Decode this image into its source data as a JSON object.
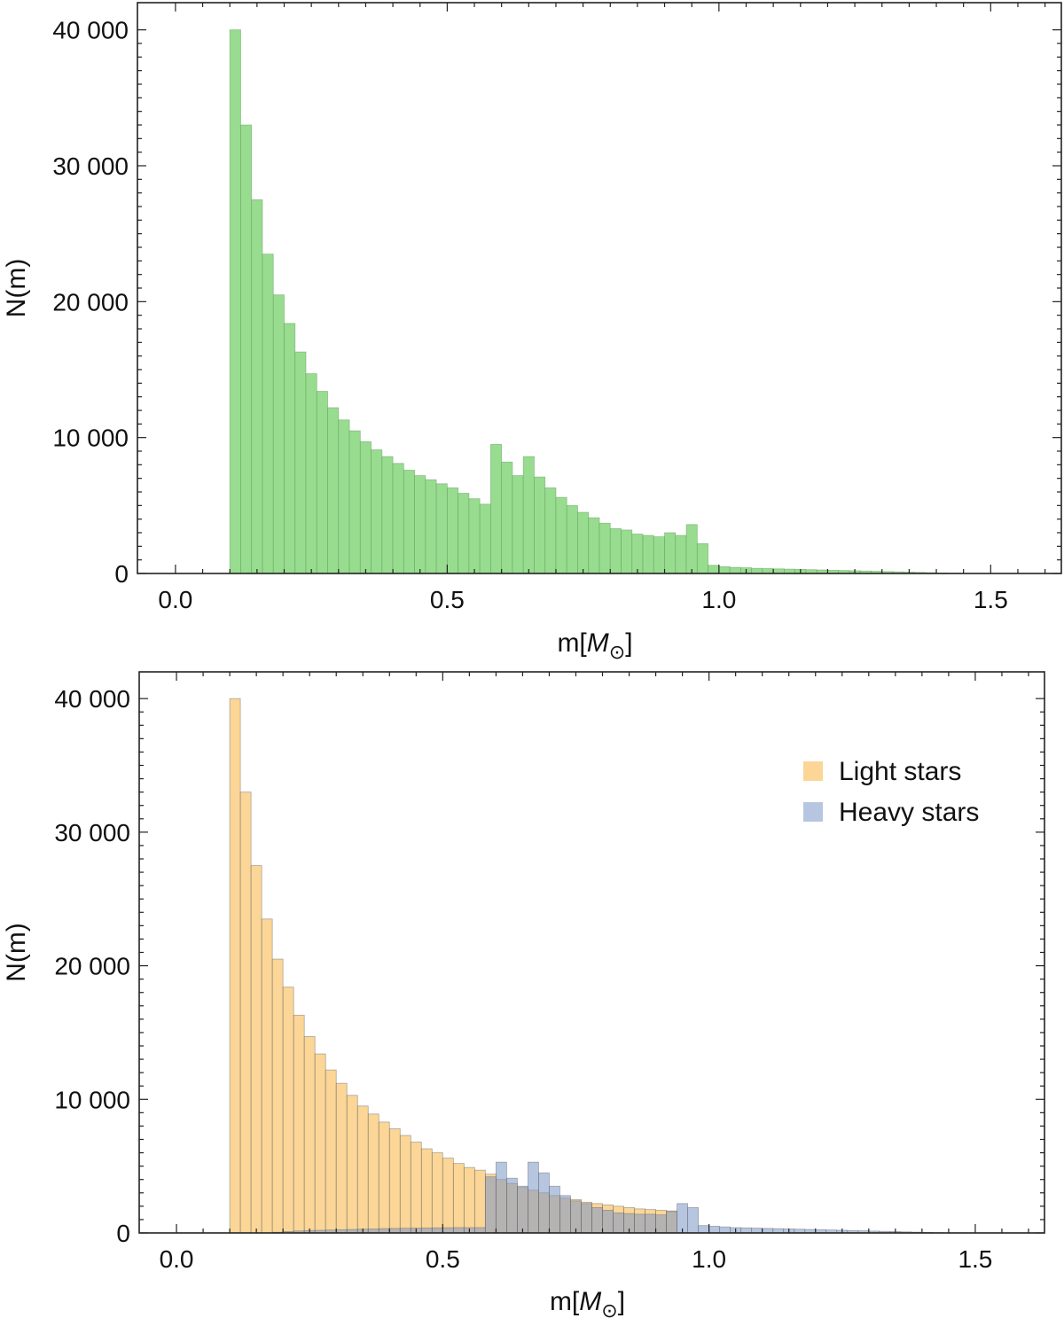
{
  "chart_data": [
    {
      "type": "bar",
      "xlabel": "m[M",
      "xlabel_subscript": "⊙",
      "xlabel_suffix": "]",
      "ylabel": "N(m)",
      "xlim": [
        -0.07,
        1.63
      ],
      "ylim": [
        0,
        42000
      ],
      "x_ticks": [
        0.0,
        0.5,
        1.0,
        1.5
      ],
      "x_tick_labels": [
        "0.0",
        "0.5",
        "1.0",
        "1.5"
      ],
      "y_ticks": [
        0,
        10000,
        20000,
        30000,
        40000
      ],
      "y_tick_labels": [
        "0",
        "10 000",
        "20 000",
        "30 000",
        "40 000"
      ],
      "bin_width": 0.02,
      "bin_start": 0.1,
      "colors": {
        "fill": "#98dc90",
        "stroke": "#5e9a58"
      },
      "series": [
        {
          "values": [
            40000,
            33000,
            27500,
            23500,
            20500,
            18400,
            16300,
            14700,
            13400,
            12200,
            11300,
            10500,
            9700,
            9100,
            8600,
            8100,
            7600,
            7200,
            6900,
            6600,
            6300,
            5900,
            5500,
            5100,
            9500,
            8200,
            7200,
            8600,
            7100,
            6300,
            5600,
            5000,
            4500,
            4100,
            3700,
            3300,
            3200,
            2900,
            2800,
            2700,
            3000,
            2800,
            3600,
            2200,
            600,
            500,
            450,
            420,
            380,
            360,
            340,
            320,
            300,
            280,
            260,
            240,
            220,
            200,
            180,
            160,
            140,
            120,
            100,
            80,
            60,
            40,
            20
          ]
        }
      ]
    },
    {
      "type": "bar",
      "xlabel": "m[M",
      "xlabel_subscript": "⊙",
      "xlabel_suffix": "]",
      "ylabel": "N(m)",
      "xlim": [
        -0.07,
        1.63
      ],
      "ylim": [
        0,
        42000
      ],
      "x_ticks": [
        0.0,
        0.5,
        1.0,
        1.5
      ],
      "x_tick_labels": [
        "0.0",
        "0.5",
        "1.0",
        "1.5"
      ],
      "y_ticks": [
        0,
        10000,
        20000,
        30000,
        40000
      ],
      "y_tick_labels": [
        "0",
        "10 000",
        "20 000",
        "30 000",
        "40 000"
      ],
      "bin_width": 0.02,
      "bin_start": 0.1,
      "legend_position": "top-right",
      "series": [
        {
          "name": "Light stars",
          "color": "#f9c060",
          "fill_opacity": 0.65,
          "values": [
            40000,
            33000,
            27500,
            23500,
            20500,
            18400,
            16300,
            14700,
            13400,
            12200,
            11200,
            10300,
            9500,
            8900,
            8300,
            7800,
            7300,
            6800,
            6300,
            6000,
            5600,
            5200,
            4900,
            4700,
            4400,
            4000,
            3700,
            3400,
            3200,
            3000,
            2800,
            2600,
            2500,
            2300,
            2200,
            2100,
            2000,
            1900,
            1800,
            1750,
            1700,
            1650
          ]
        },
        {
          "name": "Heavy stars",
          "color": "#7a98c8",
          "fill_opacity": 0.55,
          "values": [
            0,
            0,
            0,
            0,
            50,
            100,
            150,
            180,
            200,
            220,
            240,
            260,
            280,
            300,
            320,
            340,
            350,
            360,
            370,
            380,
            390,
            400,
            400,
            400,
            4200,
            5300,
            4100,
            3500,
            5300,
            4500,
            3500,
            2800,
            2400,
            2200,
            1900,
            1700,
            1500,
            1450,
            1400,
            1400,
            1350,
            1600,
            2200,
            1900,
            550,
            500,
            450,
            400,
            380,
            360,
            340,
            320,
            300,
            280,
            260,
            240,
            220,
            200,
            180,
            160,
            140,
            120,
            100,
            80,
            60,
            40,
            20
          ]
        }
      ]
    }
  ]
}
